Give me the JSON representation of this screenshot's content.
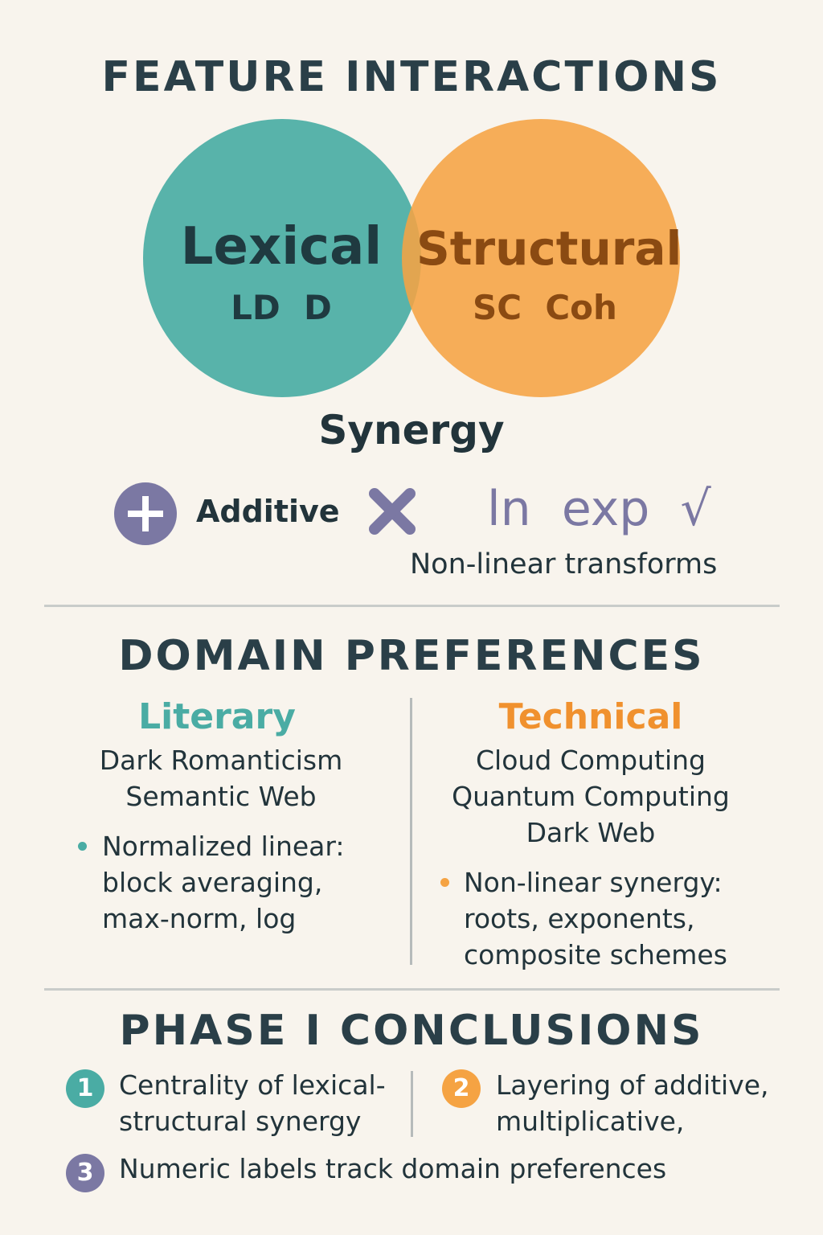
{
  "feature_interactions": {
    "title": "FEATURE INTERACTIONS",
    "lexical": {
      "name": "Lexical",
      "features": "LD  D",
      "color": "#4aaca4"
    },
    "structural": {
      "name": "Structural",
      "features": "SC  Coh",
      "color": "#f5a343"
    },
    "overlap_label": "Synergy",
    "additive_label": "Additive",
    "transforms": "ln  exp  √",
    "transforms_caption": "Non-linear transforms",
    "operator_color": "#7b78a3",
    "icons": [
      "plus-icon",
      "multiply-icon"
    ]
  },
  "domain_preferences": {
    "title": "DOMAIN PREFERENCES",
    "literary": {
      "heading": "Literary",
      "color": "#4aaca4",
      "topics": [
        "Dark Romanticism",
        "Semantic Web"
      ],
      "bullet_lines": [
        "Normalized linear:",
        "block averaging,",
        "max-norm, log"
      ]
    },
    "technical": {
      "heading": "Technical",
      "color": "#f0912e",
      "topics": [
        "Cloud Computing",
        "Quantum Computing",
        "Dark Web"
      ],
      "bullet_lines": [
        "Non-linear synergy:",
        "roots, exponents,",
        "composite schemes"
      ]
    }
  },
  "conclusions": {
    "title": "PHASE I CONCLUSIONS",
    "items": [
      {
        "number": "1",
        "lines": [
          "Centrality of lexical-",
          "structural synergy"
        ],
        "color": "#4aaca4"
      },
      {
        "number": "2",
        "lines": [
          "Layering of additive,",
          "multiplicative,"
        ],
        "color": "#f5a343"
      },
      {
        "number": "3",
        "lines": [
          "Numeric labels track domain preferences"
        ],
        "color": "#7b78a3"
      }
    ]
  }
}
